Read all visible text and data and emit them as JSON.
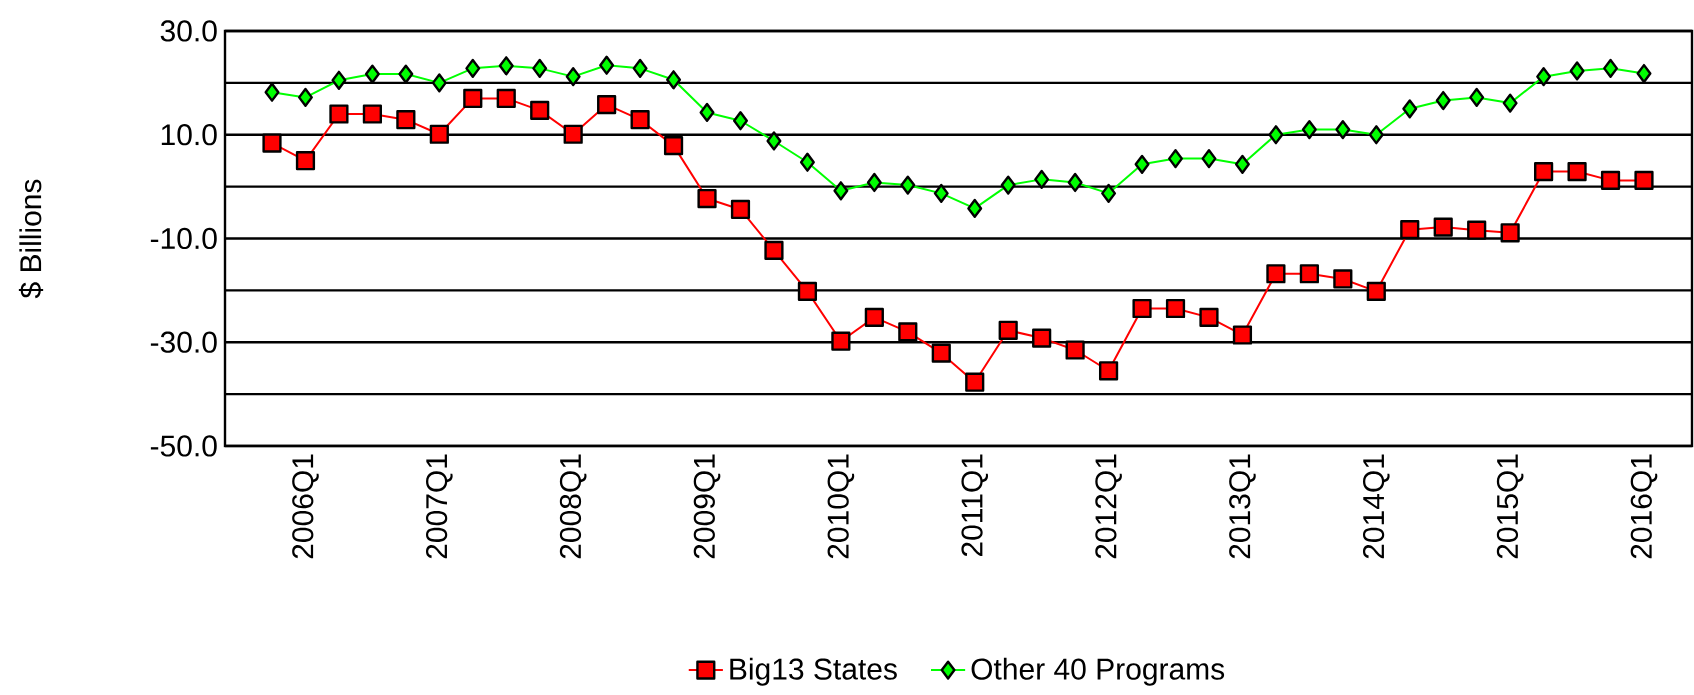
{
  "chart_data": {
    "type": "line",
    "ylabel": "$ Billions",
    "categories": [
      null,
      "2006Q1",
      null,
      null,
      null,
      "2007Q1",
      null,
      null,
      null,
      "2008Q1",
      null,
      null,
      null,
      "2009Q1",
      null,
      null,
      null,
      "2010Q1",
      null,
      null,
      null,
      "2011Q1",
      null,
      null,
      null,
      "2012Q1",
      null,
      null,
      null,
      "2013Q1",
      null,
      null,
      null,
      "2014Q1",
      null,
      null,
      null,
      "2015Q1",
      null,
      null,
      null,
      "2016Q1"
    ],
    "ylim": [
      -50,
      30
    ],
    "yticks": [
      {
        "value": -50,
        "label": "-50.0"
      },
      {
        "value": -40,
        "label": null
      },
      {
        "value": -30,
        "label": "-30.0"
      },
      {
        "value": -20,
        "label": null
      },
      {
        "value": -10,
        "label": "-10.0"
      },
      {
        "value": 0,
        "label": null
      },
      {
        "value": 10,
        "label": "10.0"
      },
      {
        "value": 20,
        "label": null
      },
      {
        "value": 30,
        "label": "30.0"
      }
    ],
    "grid": "y",
    "legend": "bottom",
    "line_style": "solid",
    "series": [
      {
        "name": "Big13 States",
        "color": "#ff0000",
        "marker": "square",
        "values": [
          8.4,
          5.0,
          14.0,
          14.0,
          12.9,
          10.1,
          17.0,
          17.0,
          14.7,
          10.1,
          15.8,
          12.9,
          7.9,
          -2.3,
          -4.4,
          -12.3,
          -20.2,
          -29.8,
          -25.2,
          -28.0,
          -32.1,
          -37.7,
          -27.7,
          -29.2,
          -31.5,
          -35.5,
          -23.5,
          -23.5,
          -25.2,
          -28.6,
          -16.8,
          -16.8,
          -17.8,
          -20.2,
          -8.3,
          -7.8,
          -8.4,
          -8.9,
          2.9,
          2.9,
          1.2,
          1.2
        ]
      },
      {
        "name": "Other 40 Programs",
        "color": "#00ff00",
        "marker": "diamond",
        "values": [
          18.2,
          17.2,
          20.5,
          21.7,
          21.7,
          20.0,
          22.8,
          23.3,
          22.8,
          21.2,
          23.4,
          22.8,
          20.6,
          14.3,
          12.7,
          8.8,
          4.7,
          -0.8,
          0.8,
          0.3,
          -1.3,
          -4.2,
          0.3,
          1.4,
          0.8,
          -1.3,
          4.3,
          5.4,
          5.4,
          4.3,
          10.0,
          11.0,
          11.0,
          10.0,
          15.0,
          16.6,
          17.2,
          16.1,
          21.2,
          22.3,
          22.8,
          21.8
        ]
      }
    ]
  }
}
